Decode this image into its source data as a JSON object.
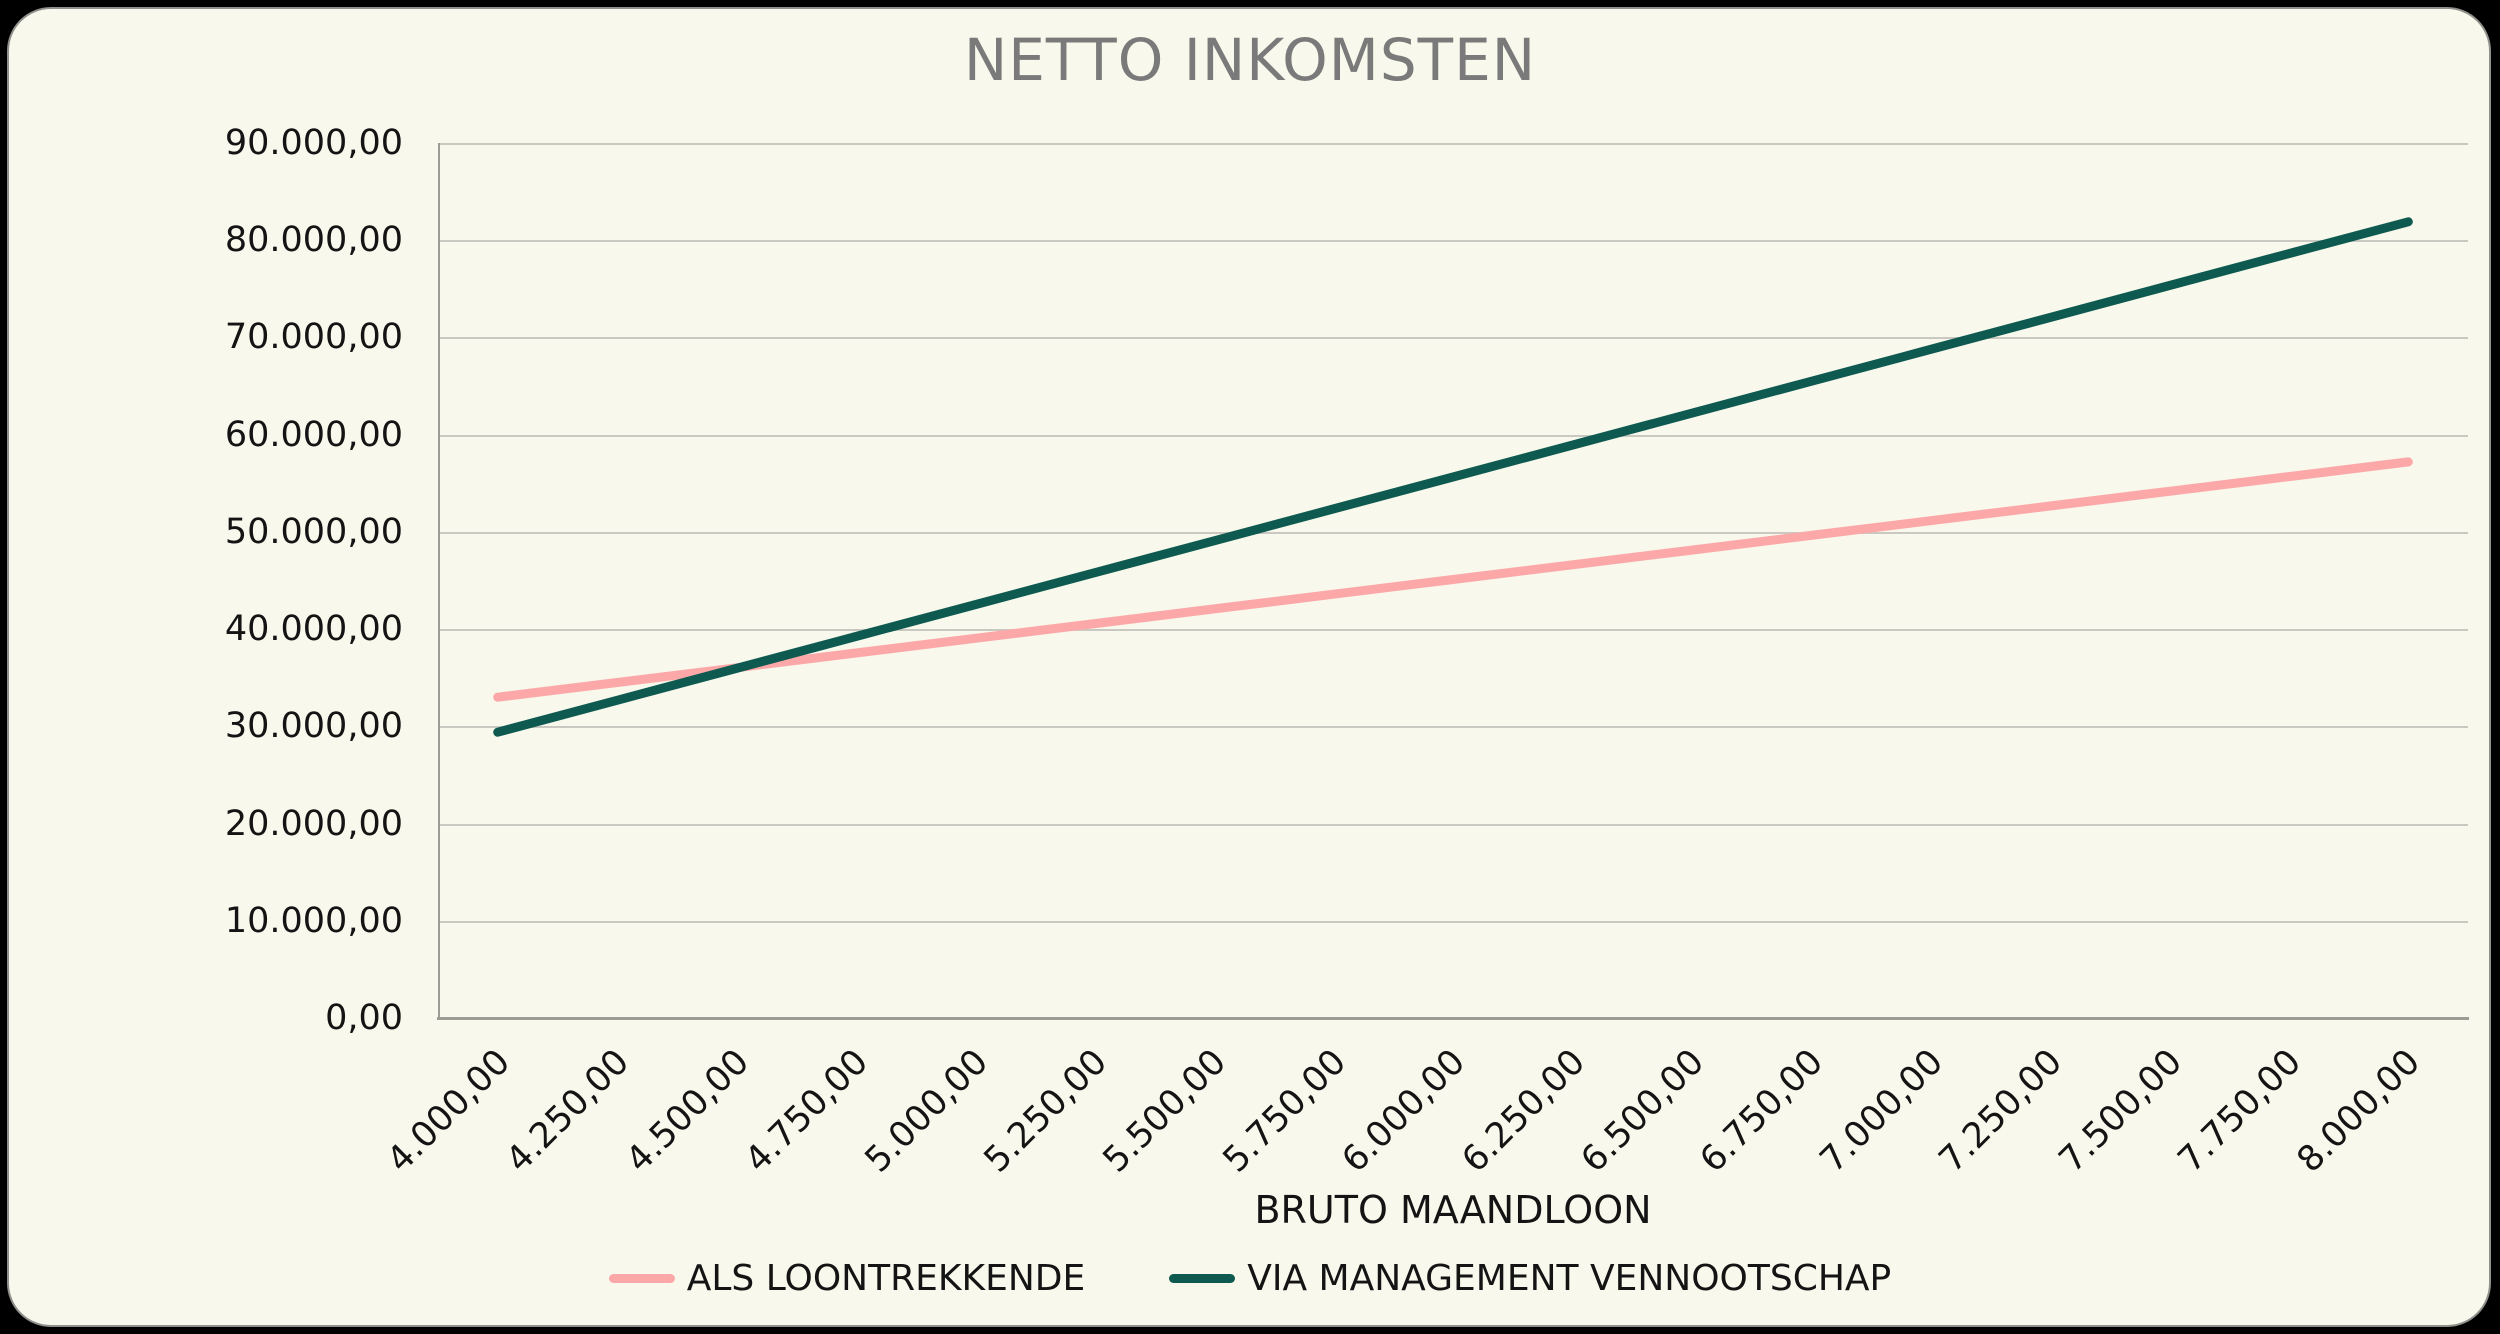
{
  "frame": {
    "outer_background": "#000000",
    "panel_background": "#F8F8EC",
    "panel_border": "#90908C"
  },
  "chart_data": {
    "type": "line",
    "title": "NETTO INKOMSTEN",
    "xlabel": "BRUTO MAANDLOON",
    "ylabel": "",
    "ylim": [
      0,
      90000
    ],
    "grid": "horizontal",
    "legend_position": "bottom",
    "title_color": "#7A7A7A",
    "grid_color": "#C9C9C2",
    "axis_color": "#9C9C95",
    "text_color": "#141414",
    "x": [
      4000,
      4250,
      4500,
      4750,
      5000,
      5250,
      5500,
      5750,
      6000,
      6250,
      6500,
      6750,
      7000,
      7250,
      7500,
      7750,
      8000
    ],
    "x_tick_labels": [
      "4.000,00",
      "4.250,00",
      "4.500,00",
      "4.750,00",
      "5.000,00",
      "5.250,00",
      "5.500,00",
      "5.750,00",
      "6.000,00",
      "6.250,00",
      "6.500,00",
      "6.750,00",
      "7.000,00",
      "7.250,00",
      "7.500,00",
      "7.750,00",
      "8.000,00"
    ],
    "y_tick_values": [
      0,
      10000,
      20000,
      30000,
      40000,
      50000,
      60000,
      70000,
      80000,
      90000
    ],
    "y_tick_labels": [
      "0,00",
      "10.000,00",
      "20.000,00",
      "30.000,00",
      "40.000,00",
      "50.000,00",
      "60.000,00",
      "70.000,00",
      "80.000,00",
      "90.000,00"
    ],
    "series": [
      {
        "name": "ALS LOONTREKKENDE",
        "color": "#FCA8A8",
        "values": [
          33000,
          34513,
          36025,
          37538,
          39050,
          40563,
          42075,
          43588,
          45100,
          46613,
          48125,
          49638,
          51150,
          52663,
          54175,
          55688,
          57200
        ]
      },
      {
        "name": "VIA MANAGEMENT VENNOOTSCHAP",
        "color": "#0E5A50",
        "values": [
          29400,
          32681,
          35963,
          39244,
          42525,
          45806,
          49088,
          52369,
          55650,
          58931,
          62213,
          65494,
          68775,
          72056,
          75338,
          78619,
          81900
        ]
      }
    ]
  }
}
